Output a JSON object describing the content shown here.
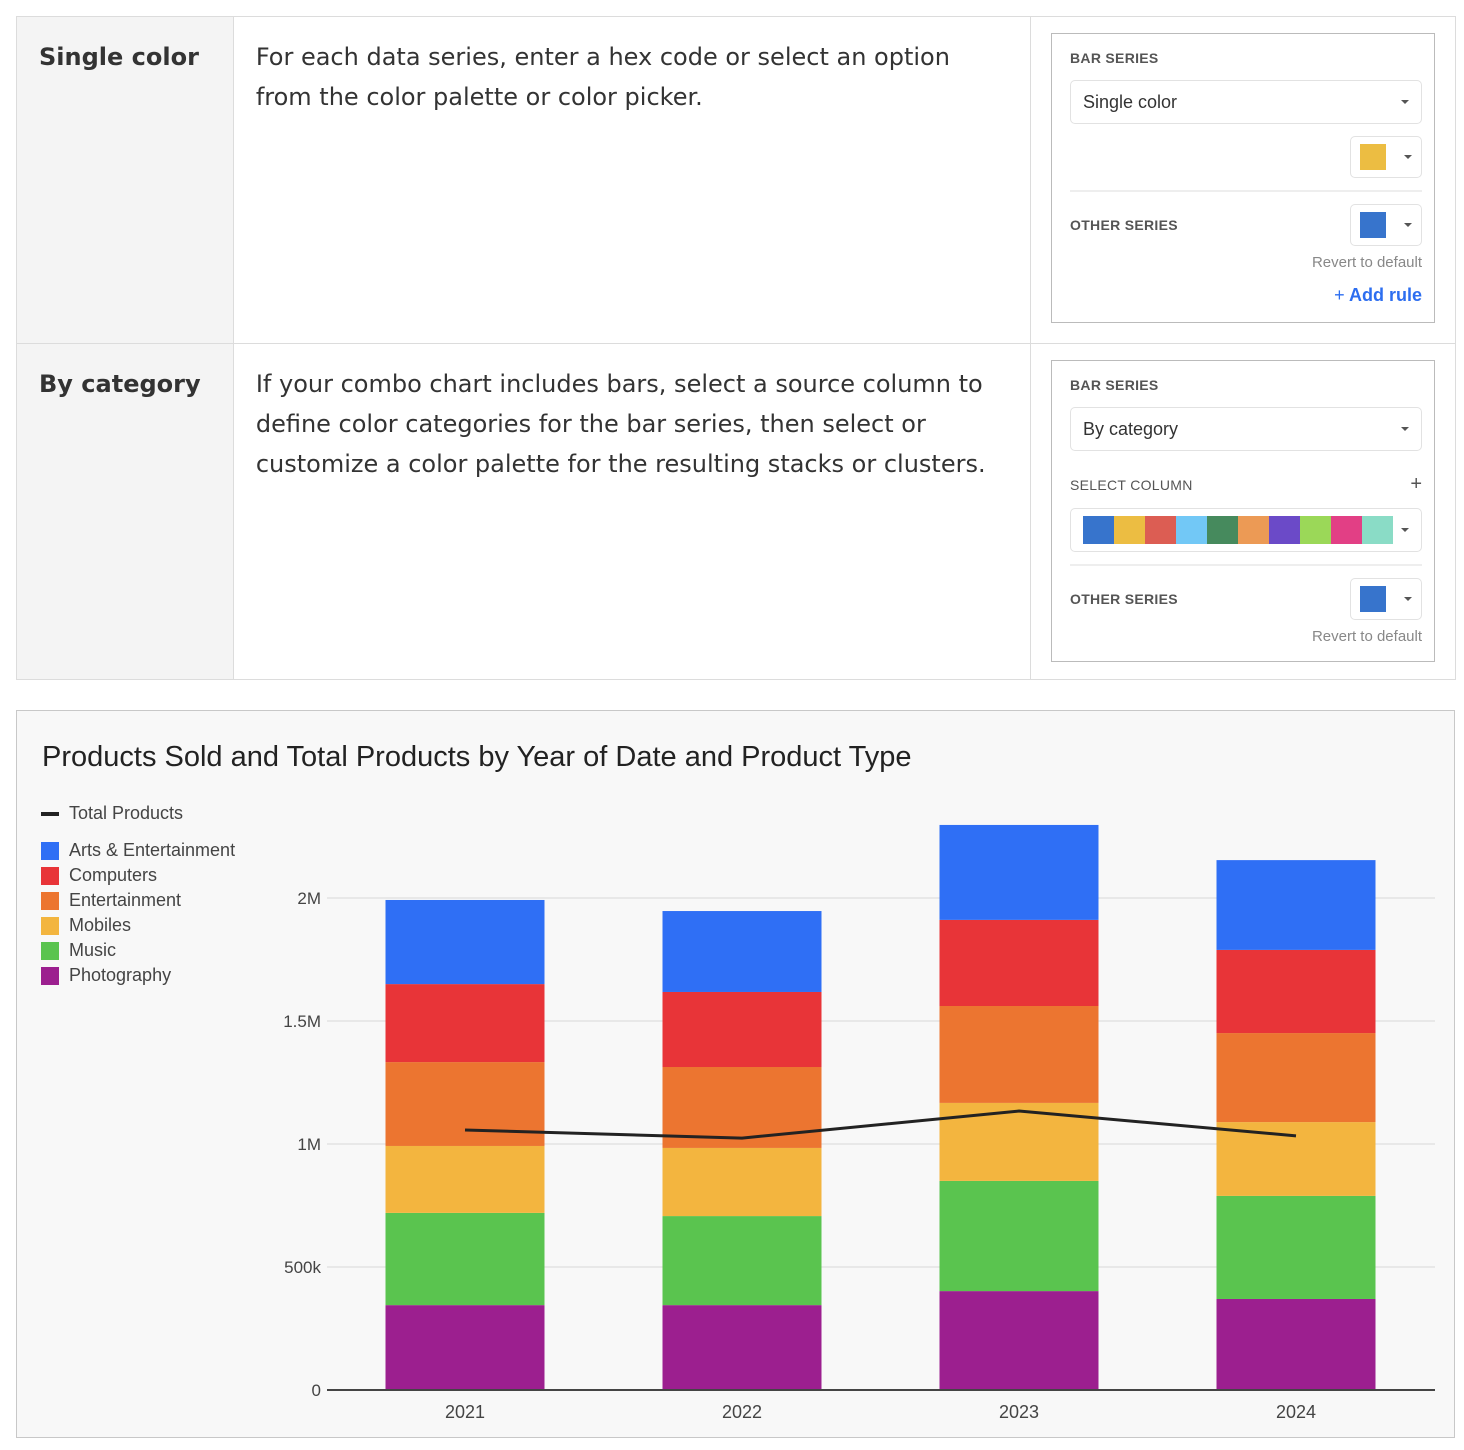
{
  "rows": [
    {
      "key": "Single color",
      "desc": "For each data series, enter a hex code or select an option from the color palette or color picker.",
      "panel": {
        "bar_series": "BAR SERIES",
        "dropdown": "Single color",
        "swatch": "#ecbd42",
        "other_series": "OTHER SERIES",
        "other_swatch": "#3774cc",
        "revert": "Revert to default",
        "add_rule": "Add rule",
        "add_icon": "+"
      }
    },
    {
      "key": "By category",
      "desc": "If your combo chart includes bars, select a source column to define color categories for the bar series, then select or customize a color palette for the resulting stacks or clusters.",
      "panel": {
        "bar_series": "BAR SERIES",
        "dropdown": "By category",
        "select_column": "SELECT COLUMN",
        "plus": "+",
        "palette": [
          "#3774cc",
          "#ecbd42",
          "#dc5d53",
          "#72c8f6",
          "#468a5d",
          "#ec9a55",
          "#6b4ac8",
          "#9bd858",
          "#e23f85",
          "#8adcc6"
        ],
        "other_series": "OTHER SERIES",
        "other_swatch": "#3774cc",
        "revert": "Revert to default"
      }
    }
  ],
  "chart_data": {
    "type": "bar",
    "stacked": true,
    "title": "Products Sold and Total Products by Year of Date and Product Type",
    "categories": [
      "2021",
      "2022",
      "2023",
      "2024"
    ],
    "yticks": [
      {
        "v": 0,
        "label": "0"
      },
      {
        "v": 500000,
        "label": "500k"
      },
      {
        "v": 1000000,
        "label": "1M"
      },
      {
        "v": 1500000,
        "label": "1.5M"
      },
      {
        "v": 2000000,
        "label": "2M"
      }
    ],
    "ylim": [
      0,
      2300000
    ],
    "series": [
      {
        "name": "Photography",
        "color": "#9c1f8f",
        "values": [
          345000,
          345000,
          402000,
          370000
        ]
      },
      {
        "name": "Music",
        "color": "#5ac44f",
        "values": [
          375000,
          362000,
          448000,
          419000
        ]
      },
      {
        "name": "Mobiles",
        "color": "#f3b53f",
        "values": [
          272000,
          277000,
          317000,
          300000
        ]
      },
      {
        "name": "Entertainment",
        "color": "#ec7530",
        "values": [
          341000,
          329000,
          394000,
          362000
        ]
      },
      {
        "name": "Computers",
        "color": "#e83438",
        "values": [
          317000,
          305000,
          350000,
          338000
        ]
      },
      {
        "name": "Arts & Entertainment",
        "color": "#2f6ff5",
        "values": [
          342000,
          329000,
          386000,
          365000
        ]
      }
    ],
    "line": {
      "name": "Total Products",
      "color": "#222222",
      "values": [
        1057000,
        1024000,
        1134000,
        1033000
      ]
    },
    "legend_order": [
      "Arts & Entertainment",
      "Computers",
      "Entertainment",
      "Mobiles",
      "Music",
      "Photography"
    ],
    "legend_position": "top-left"
  }
}
